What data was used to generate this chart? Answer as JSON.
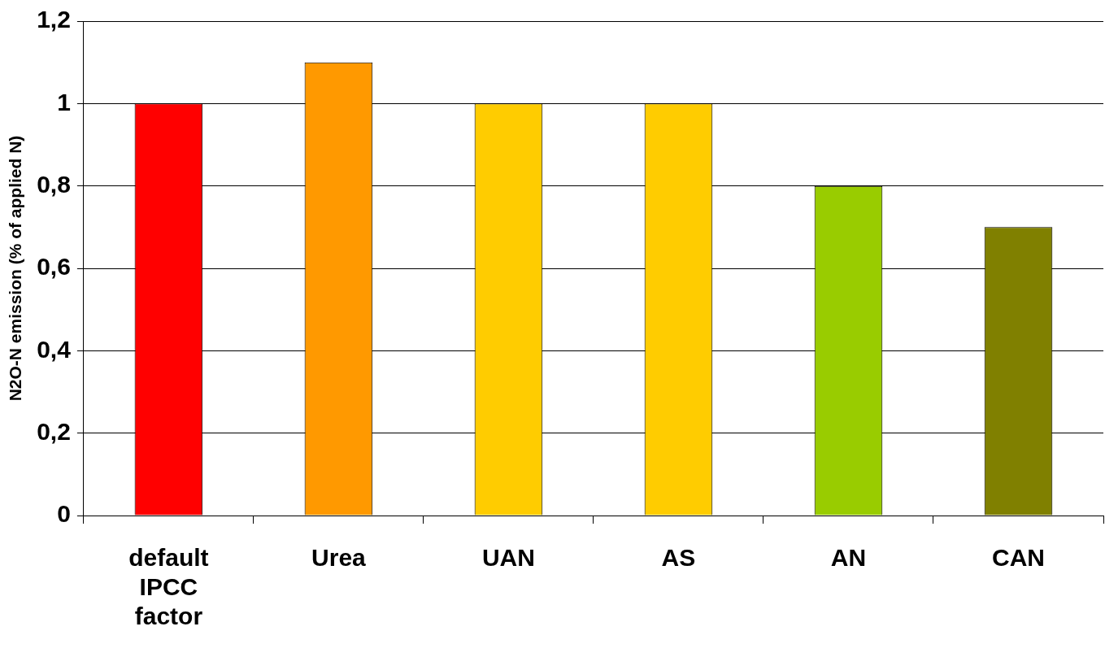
{
  "chart_data": {
    "type": "bar",
    "ylabel": "N2O-N emission (% of applied N)",
    "categories": [
      "default IPCC factor",
      "Urea",
      "UAN",
      "AS",
      "AN",
      "CAN"
    ],
    "values": [
      1,
      1.1,
      1,
      1,
      0.8,
      0.7
    ],
    "colors": [
      "#ff0000",
      "#ff9900",
      "#ffcc00",
      "#ffcc00",
      "#99cc00",
      "#808000"
    ],
    "ylim": [
      0,
      1.2
    ],
    "yticks": [
      {
        "value": 0,
        "label": "0"
      },
      {
        "value": 0.2,
        "label": "0,2"
      },
      {
        "value": 0.4,
        "label": "0,4"
      },
      {
        "value": 0.6,
        "label": "0,6"
      },
      {
        "value": 0.8,
        "label": "0,8"
      },
      {
        "value": 1,
        "label": "1"
      },
      {
        "value": 1.2,
        "label": "1,2"
      }
    ],
    "grid": "y",
    "legend": false
  }
}
